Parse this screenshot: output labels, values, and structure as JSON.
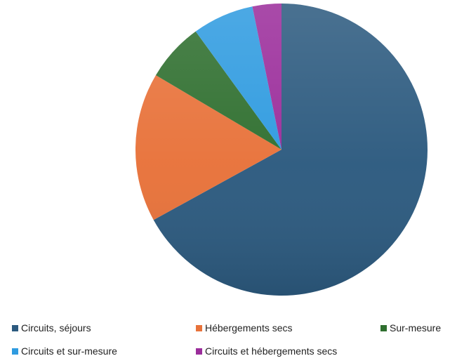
{
  "chart_data": {
    "type": "pie",
    "title": "",
    "legend_position": "bottom",
    "slices": [
      {
        "label": "Circuits, séjours",
        "value": 67.0,
        "color": "#2C5A7F"
      },
      {
        "label": "Hébergements secs",
        "value": 16.5,
        "color": "#E8723A"
      },
      {
        "label": "Sur-mesure",
        "value": 6.5,
        "color": "#2F6F2F"
      },
      {
        "label": "Circuits et sur-mesure",
        "value": 6.8,
        "color": "#2F9BE0"
      },
      {
        "label": "Circuits et hébergements secs",
        "value": 3.2,
        "color": "#9B2D9B"
      }
    ]
  }
}
